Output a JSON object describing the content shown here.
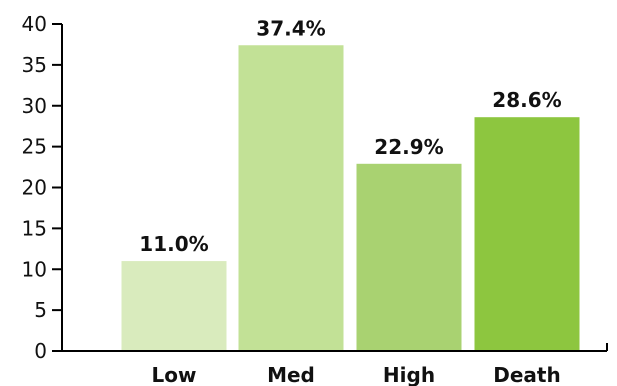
{
  "chart_data": {
    "type": "bar",
    "title": "",
    "xlabel": "",
    "ylabel": "",
    "categories": [
      "Low",
      "Med",
      "High",
      "Death"
    ],
    "values": [
      11.0,
      37.4,
      22.9,
      28.6
    ],
    "data_labels": [
      "11.0%",
      "37.4%",
      "22.9%",
      "28.6%"
    ],
    "bar_colors": [
      "#d9ebbd",
      "#c2e196",
      "#a9d271",
      "#8dc63f"
    ],
    "ylim": [
      0,
      40
    ],
    "yticks": [
      0,
      5,
      10,
      15,
      20,
      25,
      30,
      35,
      40
    ],
    "grid": false,
    "legend": "none"
  }
}
